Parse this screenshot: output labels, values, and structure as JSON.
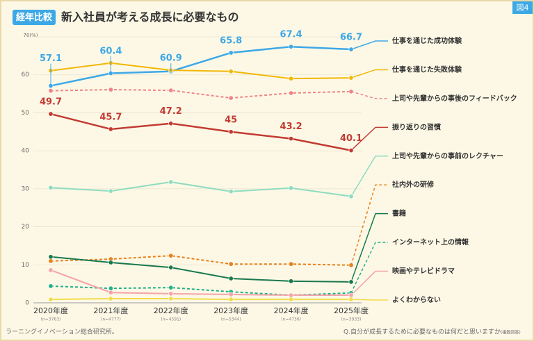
{
  "chart_data": {
    "type": "line",
    "badge": "経年比較",
    "title": "新入社員が考える成長に必要なもの",
    "figure_label": "図4",
    "categories": [
      "2020年度",
      "2021年度",
      "2022年度",
      "2023年度",
      "2024年度",
      "2025年度"
    ],
    "sample_sizes": [
      "(n=3763)",
      "(n=4777)",
      "(n=4591)",
      "(n=5344)",
      "(n=4736)",
      "(n=3933)"
    ],
    "ylim": [
      0,
      70
    ],
    "yticks": [
      0,
      10,
      20,
      30,
      40,
      50,
      60,
      {
        "value": 70,
        "label": "70(%)"
      }
    ],
    "grid": true,
    "series": [
      {
        "name": "仕事を通じた成功体験",
        "color": "#3da8e6",
        "dashed": false,
        "show_labels": true,
        "values": [
          57.1,
          60.4,
          60.9,
          65.8,
          67.4,
          66.7
        ]
      },
      {
        "name": "仕事を通じた失敗体験",
        "color": "#f2b705",
        "dashed": false,
        "show_labels": false,
        "values": [
          61.1,
          63.1,
          61.2,
          60.9,
          59.0,
          59.2
        ]
      },
      {
        "name": "上司や先輩からの事後のフィードバック",
        "color": "#f08383",
        "dashed": true,
        "show_labels": false,
        "values": [
          55.8,
          56.1,
          55.9,
          53.9,
          55.2,
          55.6
        ]
      },
      {
        "name": "振り返りの習慣",
        "color": "#c23b32",
        "dashed": false,
        "show_labels": true,
        "values": [
          49.7,
          45.7,
          47.2,
          45.0,
          43.2,
          40.1
        ]
      },
      {
        "name": "上司や先輩からの事前のレクチャー",
        "color": "#8edcbf",
        "dashed": false,
        "show_labels": false,
        "values": [
          30.3,
          29.4,
          31.8,
          29.3,
          30.2,
          28.0
        ]
      },
      {
        "name": "社内外の研修",
        "color": "#e8801a",
        "dashed": true,
        "show_labels": false,
        "values": [
          11.0,
          11.5,
          12.4,
          10.2,
          10.2,
          9.9
        ]
      },
      {
        "name": "書籍",
        "color": "#17794e",
        "dashed": false,
        "show_labels": false,
        "values": [
          12.1,
          10.6,
          9.3,
          6.4,
          5.7,
          5.5
        ]
      },
      {
        "name": "インターネット上の情報",
        "color": "#22b088",
        "dashed": true,
        "show_labels": false,
        "values": [
          4.4,
          3.8,
          4.0,
          2.9,
          2.0,
          2.6
        ]
      },
      {
        "name": "映画やテレビドラマ",
        "color": "#f5a3aa",
        "dashed": false,
        "show_labels": false,
        "values": [
          8.6,
          2.7,
          2.4,
          2.2,
          2.0,
          2.0
        ]
      },
      {
        "name": "よくわからない",
        "color": "#f3dc4a",
        "dashed": false,
        "show_labels": false,
        "values": [
          0.9,
          1.1,
          1.1,
          0.9,
          0.9,
          0.9
        ]
      }
    ],
    "source": "ラーニングイノベーション総合研究所。",
    "question": "Q.自分が成長するために必要なものは何だと思いますか",
    "question_note": "(複数回答)"
  }
}
